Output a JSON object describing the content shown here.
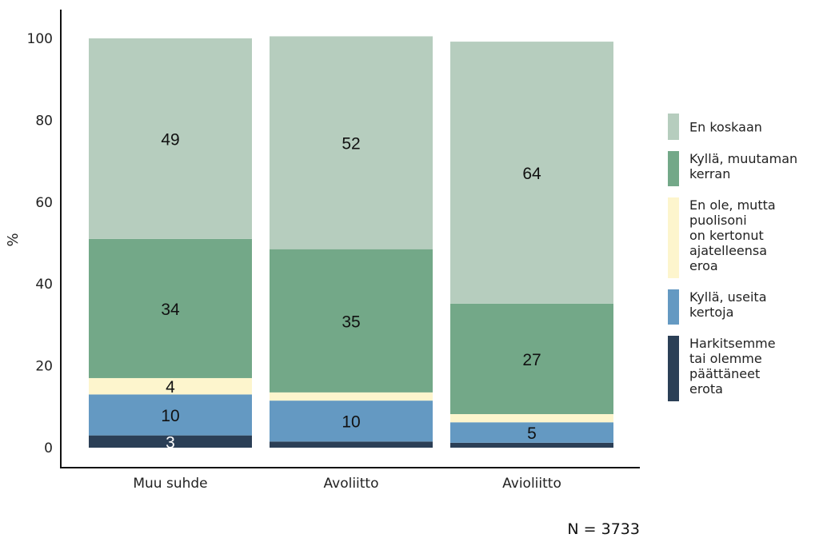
{
  "chart_data": {
    "type": "bar",
    "stacked": true,
    "categories": [
      "Muu suhde",
      "Avoliitto",
      "Avioliitto"
    ],
    "series": [
      {
        "name": "Harkitsemme tai olemme päättäneet erota",
        "color": "#2b3f56",
        "label_color": "#ffffff",
        "values": [
          3,
          1.5,
          1.2
        ],
        "labels": [
          "3",
          "",
          ""
        ]
      },
      {
        "name": "Kyllä, useita kertoja",
        "color": "#6499c2",
        "label_color": "#111111",
        "values": [
          10,
          10,
          5
        ],
        "labels": [
          "10",
          "10",
          "5"
        ]
      },
      {
        "name": "En ole, mutta puolisoni on kertonut ajatelleensa eroa",
        "color": "#fdf5cd",
        "label_color": "#111111",
        "values": [
          4,
          2,
          2
        ],
        "labels": [
          "4",
          "",
          ""
        ]
      },
      {
        "name": "Kyllä, muutaman kerran",
        "color": "#73a888",
        "label_color": "#111111",
        "values": [
          34,
          35,
          27
        ],
        "labels": [
          "34",
          "35",
          "27"
        ]
      },
      {
        "name": "En koskaan",
        "color": "#b6cdbe",
        "label_color": "#111111",
        "values": [
          49,
          52,
          64
        ],
        "labels": [
          "49",
          "52",
          "64"
        ]
      }
    ],
    "legend": {
      "placement": "right",
      "entries": [
        {
          "lines": [
            "En koskaan"
          ],
          "color": "#b6cdbe"
        },
        {
          "lines": [
            "Kyllä, muutaman",
            "kerran"
          ],
          "color": "#73a888"
        },
        {
          "lines": [
            "En ole, mutta",
            "puolisoni",
            "on kertonut",
            "ajatelleensa",
            "eroa"
          ],
          "color": "#fdf5cd"
        },
        {
          "lines": [
            "Kyllä, useita",
            "kertoja"
          ],
          "color": "#6499c2"
        },
        {
          "lines": [
            "Harkitsemme",
            "tai olemme",
            "päättäneet",
            "erota"
          ],
          "color": "#2b3f56"
        }
      ]
    },
    "title": "",
    "xlabel": "",
    "ylabel": "%",
    "ylim": [
      0,
      100
    ],
    "yticks": [
      "0",
      "20",
      "40",
      "60",
      "80",
      "100"
    ],
    "grid": false,
    "note": "N = 3733"
  }
}
